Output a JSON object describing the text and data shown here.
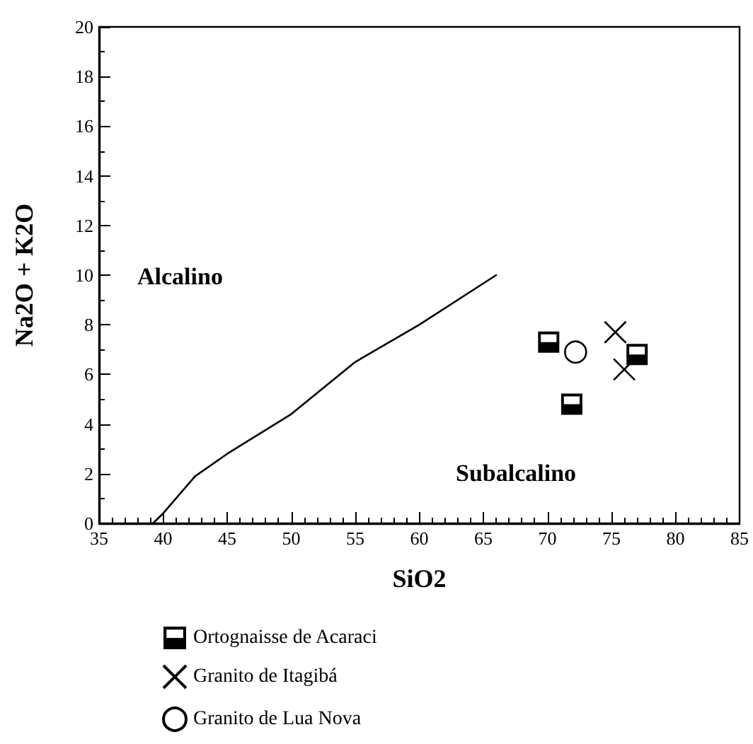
{
  "chart_data": {
    "type": "scatter",
    "xlabel": "SiO2",
    "ylabel": "Na2O + K2O",
    "xlim": [
      35,
      85
    ],
    "xticks": [
      35,
      40,
      45,
      50,
      55,
      60,
      65,
      70,
      75,
      80,
      85
    ],
    "ylim": [
      0,
      20
    ],
    "yticks": [
      0,
      2,
      4,
      6,
      8,
      10,
      12,
      14,
      16,
      18,
      20
    ],
    "grid": false,
    "legend": "bottom",
    "annotations": [
      "Alcalino",
      "Subalcalino"
    ],
    "series": [
      {
        "type": "line",
        "color": "#000000",
        "marker": "none",
        "line_style": "solid",
        "x": [
          39.2,
          40,
          42.5,
          45,
          50,
          55,
          60,
          66
        ],
        "values": [
          0,
          0.4,
          1.9,
          2.8,
          4.4,
          6.5,
          8.0,
          10
        ]
      },
      {
        "name": "Ortognaisse de Acaraci",
        "color": "#000000",
        "marker": "square",
        "x": [
          70.1,
          71.9,
          77.0
        ],
        "values": [
          7.3,
          4.8,
          6.8
        ]
      },
      {
        "name": "Granito de Itagibá",
        "color": "#000000",
        "marker": "cross",
        "x": [
          75.3,
          76.0
        ],
        "values": [
          7.7,
          6.2
        ]
      },
      {
        "name": "Granito de Lua Nova",
        "color": "#000000",
        "marker": "circle",
        "x": [
          72.2
        ],
        "values": [
          6.9
        ]
      }
    ]
  }
}
